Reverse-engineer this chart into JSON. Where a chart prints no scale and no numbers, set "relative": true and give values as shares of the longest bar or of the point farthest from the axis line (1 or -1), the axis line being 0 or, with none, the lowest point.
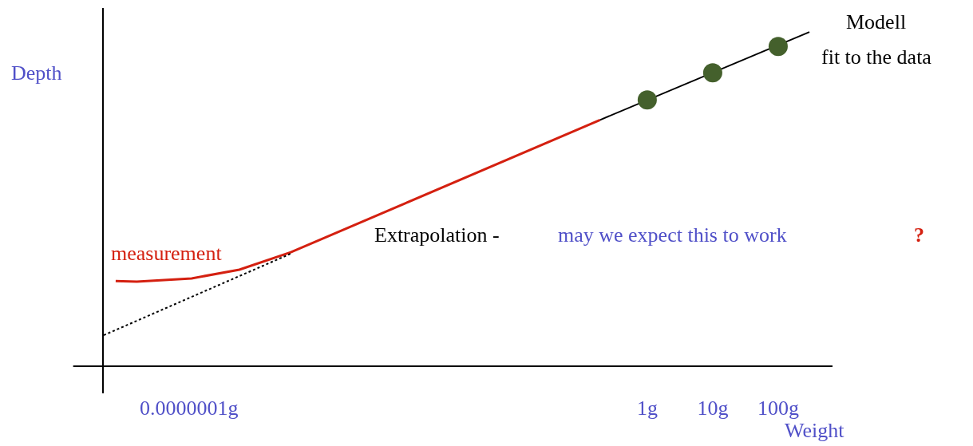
{
  "chart_data": {
    "type": "line",
    "xlabel": "Weight",
    "ylabel": "Depth",
    "relative": true,
    "log": "x",
    "legend": false,
    "xlim": [
      5e-09,
      676
    ],
    "xticks": [
      {
        "value": 1e-07,
        "label": "0.0000001g"
      },
      {
        "value": 1,
        "label": "1g"
      },
      {
        "value": 10,
        "label": "10g"
      },
      {
        "value": 100,
        "label": "100g"
      }
    ],
    "series": [
      {
        "name": "measurement",
        "color": "#d42010",
        "line_style": "solid",
        "marker": "none",
        "x": [
          7.6e-09,
          1.6e-08,
          1.1e-07,
          5.9e-07,
          3.6e-06,
          0.19
        ],
        "values": [
          0.255,
          0.253,
          0.263,
          0.289,
          0.341,
          0.737
        ]
      },
      {
        "color": "#000000",
        "line_style": "dotted",
        "marker": "none",
        "x": [
          5e-09,
          3.6e-06
        ],
        "values": [
          0.093,
          0.337
        ]
      },
      {
        "color": "#000000",
        "line_style": "solid",
        "marker": "none",
        "x": [
          0.19,
          300
        ],
        "values": [
          0.737,
          1.0
        ]
      },
      {
        "type": "scatter",
        "color": "#44602c",
        "marker": "circle",
        "x": [
          1,
          10,
          100
        ],
        "values": [
          0.797,
          0.878,
          0.957
        ]
      }
    ],
    "annotations": [
      "Modell",
      "fit to the data",
      "Extrapolation -",
      "may we expect this to work",
      "?"
    ]
  }
}
